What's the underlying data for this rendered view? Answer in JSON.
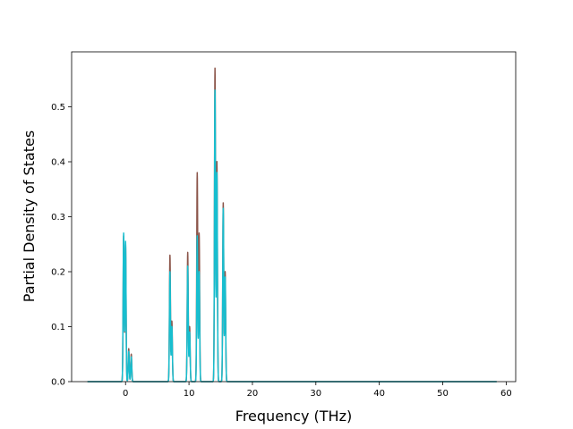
{
  "chart_data": {
    "type": "line",
    "title": "",
    "xlabel": "Frequency (THz)",
    "ylabel": "Partial Density of States",
    "xlim": [
      -8.5,
      61.5
    ],
    "ylim": [
      0,
      0.6
    ],
    "xticks": [
      0,
      10,
      20,
      30,
      40,
      50,
      60
    ],
    "xtick_labels": [
      "0",
      "10",
      "20",
      "30",
      "40",
      "50",
      "60"
    ],
    "yticks": [
      0.0,
      0.1,
      0.2,
      0.3,
      0.4,
      0.5
    ],
    "ytick_labels": [
      "0.0",
      "0.1",
      "0.2",
      "0.3",
      "0.4",
      "0.5"
    ],
    "grid": false,
    "legend": "none",
    "x_range": [
      -6,
      58.5
    ],
    "series": [
      {
        "color": "#8c564b",
        "peaks": [
          {
            "x": -0.3,
            "y": 0.265
          },
          {
            "x": 0.0,
            "y": 0.25
          },
          {
            "x": 0.5,
            "y": 0.06
          },
          {
            "x": 0.9,
            "y": 0.05
          },
          {
            "x": 7.0,
            "y": 0.23
          },
          {
            "x": 7.3,
            "y": 0.11
          },
          {
            "x": 9.8,
            "y": 0.235
          },
          {
            "x": 10.1,
            "y": 0.1
          },
          {
            "x": 11.3,
            "y": 0.38
          },
          {
            "x": 11.6,
            "y": 0.27
          },
          {
            "x": 14.1,
            "y": 0.57
          },
          {
            "x": 14.4,
            "y": 0.4
          },
          {
            "x": 15.4,
            "y": 0.325
          },
          {
            "x": 15.7,
            "y": 0.2
          }
        ]
      },
      {
        "color": "#17becf",
        "peaks": [
          {
            "x": -0.3,
            "y": 0.27
          },
          {
            "x": 0.0,
            "y": 0.255
          },
          {
            "x": 0.5,
            "y": 0.055
          },
          {
            "x": 0.9,
            "y": 0.045
          },
          {
            "x": 7.0,
            "y": 0.2
          },
          {
            "x": 7.3,
            "y": 0.1
          },
          {
            "x": 9.8,
            "y": 0.21
          },
          {
            "x": 10.1,
            "y": 0.09
          },
          {
            "x": 11.3,
            "y": 0.265
          },
          {
            "x": 11.6,
            "y": 0.2
          },
          {
            "x": 14.1,
            "y": 0.53
          },
          {
            "x": 14.4,
            "y": 0.38
          },
          {
            "x": 15.4,
            "y": 0.315
          },
          {
            "x": 15.7,
            "y": 0.19
          }
        ]
      }
    ]
  }
}
